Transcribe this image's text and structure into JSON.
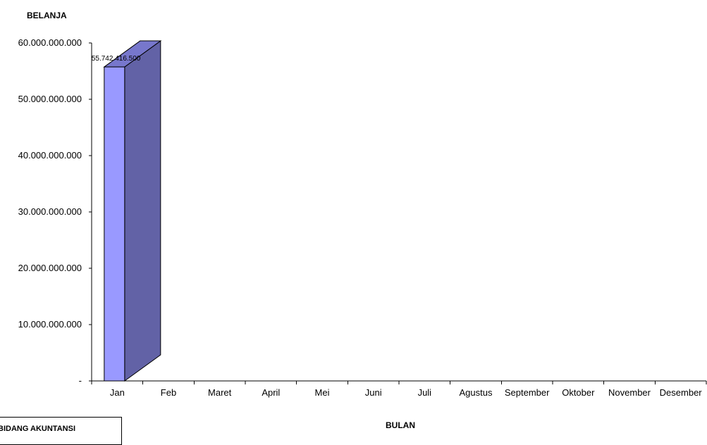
{
  "chart_data": {
    "type": "bar",
    "ylabel": "BELANJA",
    "xlabel": "BULAN",
    "categories": [
      "Jan",
      "Feb",
      "Maret",
      "April",
      "Mei",
      "Juni",
      "Juli",
      "Agustus",
      "September",
      "Oktober",
      "November",
      "Desember"
    ],
    "series": [
      {
        "values": [
          55742416500,
          0,
          0,
          0,
          0,
          0,
          0,
          0,
          0,
          0,
          0,
          0
        ],
        "color": "#9999ff",
        "side_color": "#6262a6",
        "top_color": "#7777cc"
      }
    ],
    "data_labels": [
      "55.742.416.500",
      "",
      "",
      "",
      "",
      "",
      "",
      "",
      "",
      "",
      "",
      ""
    ],
    "ylim": [
      0,
      60000000000
    ],
    "yticks": [
      0,
      10000000000,
      20000000000,
      30000000000,
      40000000000,
      50000000000,
      60000000000
    ],
    "ytick_labels": [
      "-",
      "10.000.000.000",
      "20.000.000.000",
      "30.000.000.000",
      "40.000.000.000",
      "50.000.000.000",
      "60.000.000.000"
    ],
    "grid": false,
    "legend": "none",
    "style": "3d-column"
  },
  "note": {
    "text": "BIDANG AKUNTANSI"
  }
}
